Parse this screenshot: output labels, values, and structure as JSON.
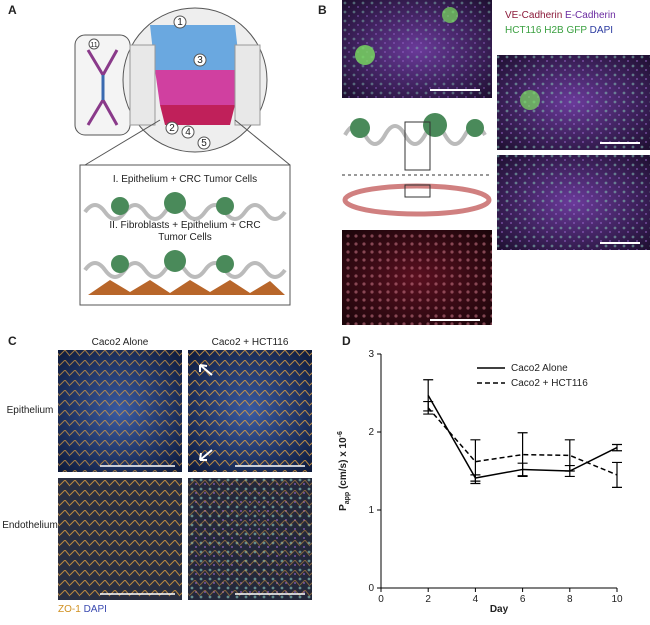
{
  "panel_a": {
    "label": "A",
    "callouts": [
      "1",
      "2",
      "3",
      "4",
      "5"
    ],
    "device_port": "11",
    "box_text_1": "I. Epithelium + CRC Tumor Cells",
    "box_text_2": [
      "II. Fibroblasts + Epithelium + CRC",
      "Tumor Cells"
    ]
  },
  "panel_b": {
    "label": "B",
    "legend": {
      "ve_cadherin": "VE-Cadherin",
      "e_cadherin": "E-Cadherin",
      "h2b": "HCT116 H2B GFP",
      "dapi": "DAPI"
    }
  },
  "panel_c": {
    "label": "C",
    "columns": [
      "Caco2 Alone",
      "Caco2 + HCT116"
    ],
    "rows": [
      "Epithelium",
      "Endothelium"
    ],
    "stain": {
      "zo1": "ZO-1",
      "dapi": "DAPI"
    }
  },
  "panel_d": {
    "label": "D"
  },
  "chart_data": {
    "type": "line",
    "x_label": "Day",
    "y_label": {
      "base": "P",
      "sub": "app",
      "mid": " (cm/s) x 10",
      "sup": "-6"
    },
    "x": [
      2,
      4,
      6,
      8,
      10
    ],
    "series": [
      {
        "name": "Caco2 Alone",
        "color": "#000000",
        "dash": false,
        "values": [
          2.47,
          1.41,
          1.52,
          1.5,
          1.8
        ],
        "errors": [
          0.2,
          0.04,
          0.08,
          0.07,
          0.04
        ]
      },
      {
        "name": "Caco2 + HCT116",
        "color": "#000000",
        "dash": true,
        "values": [
          2.31,
          1.62,
          1.71,
          1.7,
          1.45
        ],
        "errors": [
          0.08,
          0.28,
          0.28,
          0.2,
          0.16
        ]
      }
    ],
    "xlim": [
      0,
      10
    ],
    "xticks": [
      0,
      2,
      4,
      6,
      8,
      10
    ],
    "ylim": [
      0,
      3
    ],
    "yticks": [
      0,
      1,
      2,
      3
    ],
    "grid": false,
    "legend": "top-right"
  }
}
